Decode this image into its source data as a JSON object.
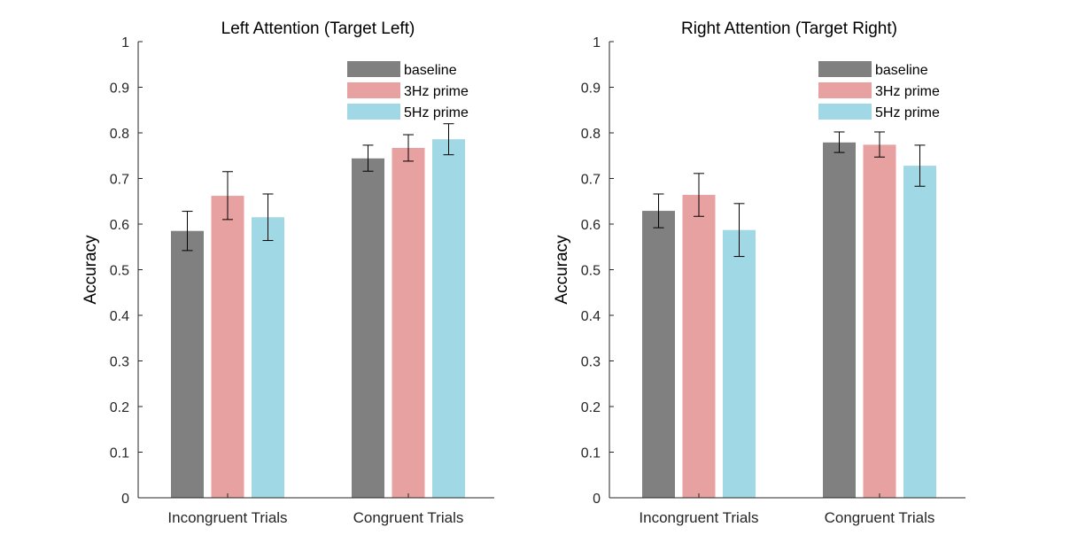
{
  "chart_data": [
    {
      "type": "bar",
      "title": "Left Attention (Target Left)",
      "xlabel": "",
      "ylabel": "Accuracy",
      "ylim": [
        0,
        1
      ],
      "yticks": [
        "0",
        "0.1",
        "0.2",
        "0.3",
        "0.4",
        "0.5",
        "0.6",
        "0.7",
        "0.8",
        "0.9",
        "1"
      ],
      "categories": [
        "Incongruent Trials",
        "Congruent Trials"
      ],
      "legend_position": "top-right",
      "grid": false,
      "series": [
        {
          "name": "baseline",
          "color": "#808080",
          "values": [
            0.585,
            0.744
          ],
          "err_low": [
            0.542,
            0.716
          ],
          "err_high": [
            0.628,
            0.773
          ]
        },
        {
          "name": "3Hz prime",
          "color": "#e8a1a1",
          "values": [
            0.662,
            0.767
          ],
          "err_low": [
            0.61,
            0.738
          ],
          "err_high": [
            0.715,
            0.796
          ]
        },
        {
          "name": "5Hz prime",
          "color": "#a1d8e6",
          "values": [
            0.615,
            0.786
          ],
          "err_low": [
            0.564,
            0.752
          ],
          "err_high": [
            0.666,
            0.82
          ]
        }
      ]
    },
    {
      "type": "bar",
      "title": "Right Attention (Target Right)",
      "xlabel": "",
      "ylabel": "Accuracy",
      "ylim": [
        0,
        1
      ],
      "yticks": [
        "0",
        "0.1",
        "0.2",
        "0.3",
        "0.4",
        "0.5",
        "0.6",
        "0.7",
        "0.8",
        "0.9",
        "1"
      ],
      "categories": [
        "Incongruent Trials",
        "Congruent Trials"
      ],
      "legend_position": "top-right",
      "grid": false,
      "series": [
        {
          "name": "baseline",
          "color": "#808080",
          "values": [
            0.629,
            0.779
          ],
          "err_low": [
            0.592,
            0.757
          ],
          "err_high": [
            0.666,
            0.802
          ]
        },
        {
          "name": "3Hz prime",
          "color": "#e8a1a1",
          "values": [
            0.664,
            0.774
          ],
          "err_low": [
            0.617,
            0.747
          ],
          "err_high": [
            0.711,
            0.802
          ]
        },
        {
          "name": "5Hz prime",
          "color": "#a1d8e6",
          "values": [
            0.587,
            0.728
          ],
          "err_low": [
            0.529,
            0.683
          ],
          "err_high": [
            0.645,
            0.773
          ]
        }
      ]
    }
  ]
}
